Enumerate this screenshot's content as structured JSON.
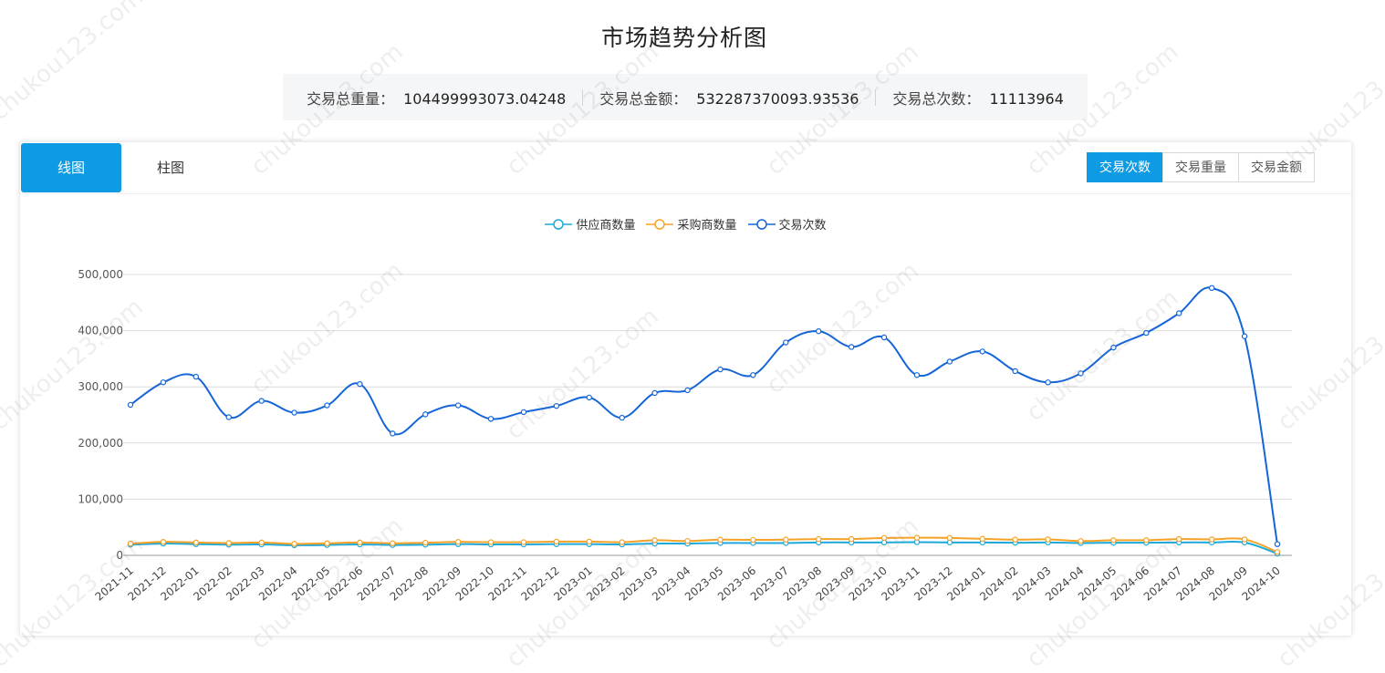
{
  "title": "市场趋势分析图",
  "summary": {
    "weight_label": "交易总重量：",
    "weight_value": "104499993073.04248",
    "amount_label": "交易总金额：",
    "amount_value": "532287370093.93536",
    "count_label": "交易总次数：",
    "count_value": "11113964"
  },
  "tabs": {
    "line": "线图",
    "bar": "柱图"
  },
  "metric_buttons": {
    "count": "交易次数",
    "weight": "交易重量",
    "amount": "交易金额"
  },
  "watermark_text": "chukou123.com",
  "chart_data": {
    "type": "line",
    "smooth": true,
    "ylim": [
      0,
      500000
    ],
    "yticks": [
      0,
      100000,
      200000,
      300000,
      400000,
      500000
    ],
    "ytick_labels": [
      "0",
      "100,000",
      "200,000",
      "300,000",
      "400,000",
      "500,000"
    ],
    "grid": true,
    "legend_position": "top-center",
    "categories": [
      "2021-11",
      "2021-12",
      "2022-01",
      "2022-02",
      "2022-03",
      "2022-04",
      "2022-05",
      "2022-06",
      "2022-07",
      "2022-08",
      "2022-09",
      "2022-10",
      "2022-11",
      "2022-12",
      "2023-01",
      "2023-02",
      "2023-03",
      "2023-04",
      "2023-05",
      "2023-06",
      "2023-07",
      "2023-08",
      "2023-09",
      "2023-10",
      "2023-11",
      "2023-12",
      "2024-01",
      "2024-02",
      "2024-03",
      "2024-04",
      "2024-05",
      "2024-06",
      "2024-07",
      "2024-08",
      "2024-09",
      "2024-10"
    ],
    "series": [
      {
        "name": "供应商数量",
        "color": "#1fa9d9",
        "values": [
          19000,
          21000,
          20000,
          19000,
          19500,
          18000,
          18500,
          19500,
          18500,
          19000,
          20000,
          19500,
          19500,
          20000,
          20000,
          19500,
          21000,
          21000,
          22000,
          22000,
          22000,
          23000,
          23000,
          23000,
          23500,
          23000,
          23000,
          22500,
          23000,
          22000,
          22500,
          22500,
          23000,
          23000,
          23000,
          3000
        ]
      },
      {
        "name": "采购商数量",
        "color": "#f5a227",
        "values": [
          21000,
          24000,
          23000,
          22000,
          23000,
          20500,
          21500,
          23000,
          21500,
          22500,
          24000,
          23500,
          23500,
          24500,
          24500,
          23500,
          27000,
          25500,
          28000,
          27500,
          28000,
          29000,
          29000,
          31000,
          31500,
          31000,
          29500,
          28000,
          28500,
          25500,
          27000,
          27000,
          29000,
          28500,
          28500,
          6000
        ]
      },
      {
        "name": "交易次数",
        "color": "#1565d8",
        "values": [
          268000,
          308000,
          318000,
          246000,
          275000,
          254000,
          267000,
          305000,
          217000,
          251000,
          267000,
          243000,
          255000,
          266000,
          281000,
          245000,
          289000,
          294000,
          331000,
          321000,
          379000,
          399000,
          371000,
          388000,
          321000,
          345000,
          363000,
          328000,
          308000,
          324000,
          370000,
          396000,
          431000,
          476000,
          390000,
          20000
        ]
      }
    ]
  }
}
